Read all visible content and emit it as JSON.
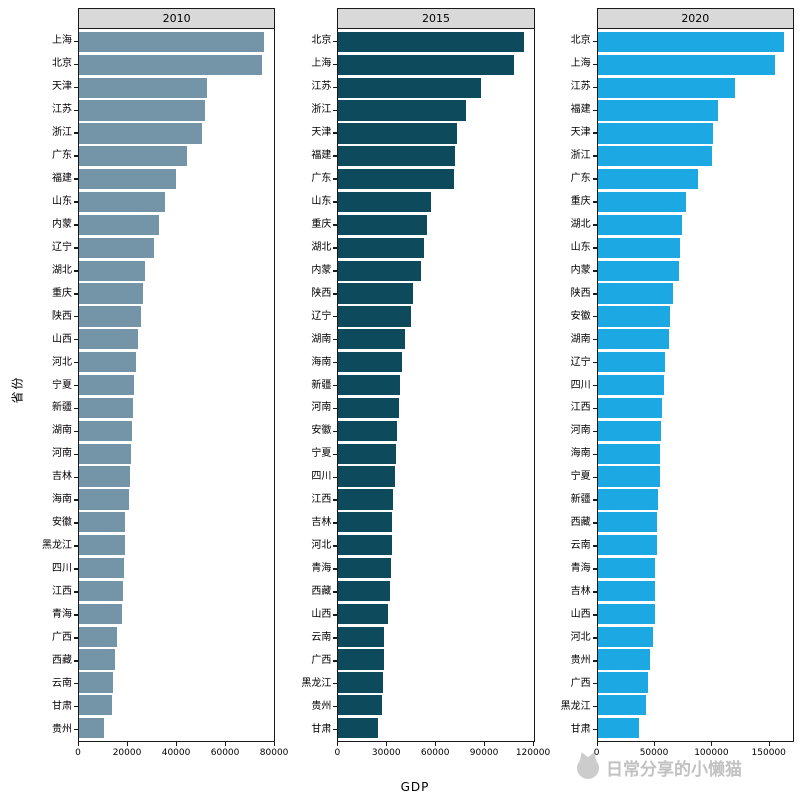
{
  "watermark": {
    "text": "日常分享的小懒猫"
  },
  "chart_data": {
    "type": "bar",
    "orientation": "horizontal",
    "xlabel": "GDP",
    "ylabel": "省份",
    "legend": "none",
    "grid": "off",
    "strip_bg": "#d9d9d9",
    "panel_border": "#1a1a1a",
    "facets": [
      {
        "title": "2010",
        "color": "#7494a8",
        "x_max": 80500,
        "x_ticks": [
          0,
          20000,
          40000,
          60000,
          80000
        ],
        "categories": [
          "上海",
          "北京",
          "天津",
          "江苏",
          "浙江",
          "广东",
          "福建",
          "山东",
          "内蒙",
          "辽宁",
          "湖北",
          "重庆",
          "陕西",
          "山西",
          "河北",
          "宁夏",
          "新疆",
          "湖南",
          "河南",
          "吉林",
          "海南",
          "安徽",
          "黑龙江",
          "四川",
          "江西",
          "青海",
          "广西",
          "西藏",
          "云南",
          "甘肃",
          "贵州"
        ],
        "values": [
          76300,
          75500,
          52800,
          52000,
          50500,
          44500,
          40000,
          35500,
          33000,
          31000,
          27000,
          26500,
          25500,
          24500,
          23500,
          22800,
          22300,
          22000,
          21500,
          21000,
          20500,
          19000,
          18800,
          18500,
          18200,
          17800,
          15500,
          14800,
          14200,
          13800,
          10500
        ]
      },
      {
        "title": "2015",
        "color": "#0d4a5c",
        "x_max": 121000,
        "x_ticks": [
          0,
          30000,
          60000,
          90000,
          120000
        ],
        "categories": [
          "北京",
          "上海",
          "江苏",
          "浙江",
          "天津",
          "福建",
          "广东",
          "山东",
          "重庆",
          "湖北",
          "内蒙",
          "陕西",
          "辽宁",
          "湖南",
          "海南",
          "新疆",
          "河南",
          "安徽",
          "宁夏",
          "四川",
          "江西",
          "吉林",
          "河北",
          "青海",
          "西藏",
          "山西",
          "云南",
          "广西",
          "黑龙江",
          "贵州",
          "甘肃"
        ],
        "values": [
          115000,
          109000,
          88500,
          79000,
          73500,
          72500,
          71500,
          57500,
          55000,
          53000,
          51500,
          46500,
          45000,
          41500,
          39500,
          38500,
          37500,
          36500,
          36000,
          35000,
          34000,
          33500,
          33000,
          32500,
          32000,
          30500,
          28500,
          28000,
          27500,
          27000,
          24500
        ]
      },
      {
        "title": "2020",
        "color": "#1ca8e2",
        "x_max": 172000,
        "x_ticks": [
          0,
          50000,
          100000,
          150000
        ],
        "categories": [
          "北京",
          "上海",
          "江苏",
          "福建",
          "天津",
          "浙江",
          "广东",
          "重庆",
          "湖北",
          "山东",
          "内蒙",
          "陕西",
          "安徽",
          "湖南",
          "辽宁",
          "四川",
          "江西",
          "河南",
          "海南",
          "宁夏",
          "新疆",
          "西藏",
          "云南",
          "青海",
          "吉林",
          "山西",
          "河北",
          "贵州",
          "广西",
          "黑龙江",
          "甘肃"
        ],
        "values": [
          164000,
          156000,
          121000,
          106000,
          102000,
          101000,
          88000,
          78000,
          74500,
          72200,
          72000,
          66500,
          63400,
          62900,
          58900,
          58100,
          56900,
          55400,
          55100,
          54500,
          53400,
          52300,
          52000,
          50800,
          50700,
          50500,
          48600,
          46300,
          44300,
          42600,
          36000
        ]
      }
    ]
  }
}
